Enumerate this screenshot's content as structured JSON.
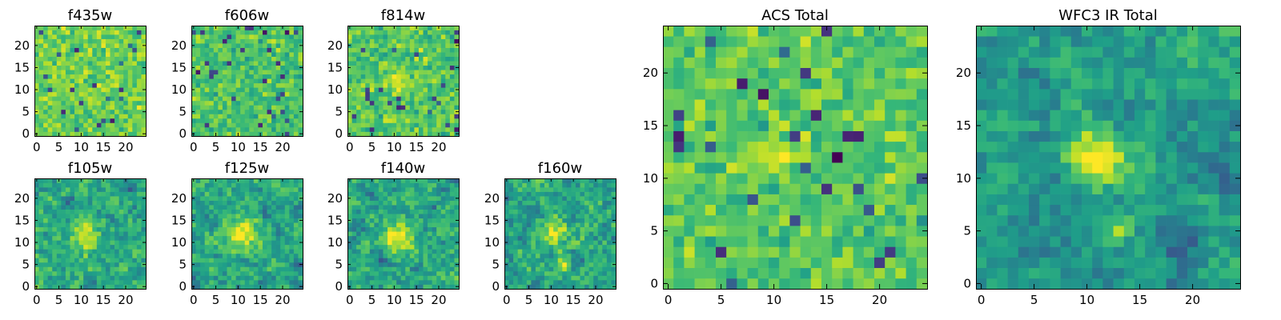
{
  "chart_data": {
    "type": "heatmap",
    "colormap": "viridis",
    "grid": false,
    "panels": [
      {
        "id": "f435w",
        "title": "f435w",
        "size": "small",
        "cols": 25,
        "rows": 25,
        "xticks": [
          0,
          5,
          10,
          15,
          20
        ],
        "yticks": [
          0,
          5,
          10,
          15,
          20
        ],
        "xlim": [
          -0.5,
          24.5
        ],
        "ylim": [
          -0.5,
          24.5
        ],
        "seed": 11,
        "level": 0.78,
        "spread": 0.22,
        "smooth": 0,
        "peaks": []
      },
      {
        "id": "f606w",
        "title": "f606w",
        "size": "small",
        "cols": 25,
        "rows": 25,
        "xticks": [
          0,
          5,
          10,
          15,
          20
        ],
        "yticks": [
          0,
          5,
          10,
          15,
          20
        ],
        "xlim": [
          -0.5,
          24.5
        ],
        "ylim": [
          -0.5,
          24.5
        ],
        "seed": 23,
        "level": 0.72,
        "spread": 0.22,
        "smooth": 0,
        "peaks": []
      },
      {
        "id": "f814w",
        "title": "f814w",
        "size": "small",
        "cols": 25,
        "rows": 25,
        "xticks": [
          0,
          5,
          10,
          15,
          20
        ],
        "yticks": [
          0,
          5,
          10,
          15,
          20
        ],
        "xlim": [
          -0.5,
          24.5
        ],
        "ylim": [
          -0.5,
          24.5
        ],
        "seed": 37,
        "level": 0.74,
        "spread": 0.24,
        "smooth": 0,
        "peaks": [
          {
            "x": 11,
            "y": 12,
            "amp": 0.2,
            "r": 1.5
          }
        ]
      },
      {
        "id": "f105w",
        "title": "f105w",
        "size": "small",
        "cols": 25,
        "rows": 25,
        "xticks": [
          0,
          5,
          10,
          15,
          20
        ],
        "yticks": [
          0,
          5,
          10,
          15,
          20
        ],
        "xlim": [
          -0.5,
          24.5
        ],
        "ylim": [
          -0.5,
          24.5
        ],
        "seed": 41,
        "level": 0.62,
        "spread": 0.3,
        "smooth": 1,
        "peaks": [
          {
            "x": 11,
            "y": 12,
            "amp": 0.35,
            "r": 2.2
          }
        ]
      },
      {
        "id": "f125w",
        "title": "f125w",
        "size": "small",
        "cols": 25,
        "rows": 25,
        "xticks": [
          0,
          5,
          10,
          15,
          20
        ],
        "yticks": [
          0,
          5,
          10,
          15,
          20
        ],
        "xlim": [
          -0.5,
          24.5
        ],
        "ylim": [
          -0.5,
          24.5
        ],
        "seed": 53,
        "level": 0.62,
        "spread": 0.3,
        "smooth": 1,
        "peaks": [
          {
            "x": 11,
            "y": 12,
            "amp": 0.4,
            "r": 2.2
          }
        ]
      },
      {
        "id": "f140w",
        "title": "f140w",
        "size": "small",
        "cols": 25,
        "rows": 25,
        "xticks": [
          0,
          5,
          10,
          15,
          20
        ],
        "yticks": [
          0,
          5,
          10,
          15,
          20
        ],
        "xlim": [
          -0.5,
          24.5
        ],
        "ylim": [
          -0.5,
          24.5
        ],
        "seed": 67,
        "level": 0.6,
        "spread": 0.3,
        "smooth": 1,
        "peaks": [
          {
            "x": 11,
            "y": 11,
            "amp": 0.45,
            "r": 2.2
          }
        ]
      },
      {
        "id": "f160w",
        "title": "f160w",
        "size": "small",
        "cols": 25,
        "rows": 25,
        "xticks": [
          0,
          5,
          10,
          15,
          20
        ],
        "yticks": [
          0,
          5,
          10,
          15,
          20
        ],
        "xlim": [
          -0.5,
          24.5
        ],
        "ylim": [
          -0.5,
          24.5
        ],
        "seed": 79,
        "level": 0.6,
        "spread": 0.3,
        "smooth": 1,
        "peaks": [
          {
            "x": 11,
            "y": 12,
            "amp": 0.4,
            "r": 2.0
          },
          {
            "x": 13,
            "y": 5,
            "amp": 0.3,
            "r": 1.0
          }
        ]
      },
      {
        "id": "acs-total",
        "title": "ACS Total",
        "size": "large",
        "cols": 25,
        "rows": 25,
        "xticks": [
          0,
          5,
          10,
          15,
          20
        ],
        "yticks": [
          0,
          5,
          10,
          15,
          20
        ],
        "xlim": [
          -0.5,
          24.5
        ],
        "ylim": [
          -0.5,
          24.5
        ],
        "seed": 97,
        "level": 0.74,
        "spread": 0.22,
        "smooth": 0,
        "peaks": [
          {
            "x": 10,
            "y": 12,
            "amp": 0.22,
            "r": 1.5
          }
        ]
      },
      {
        "id": "wfc3-ir-total",
        "title": "WFC3 IR Total",
        "size": "large",
        "cols": 25,
        "rows": 25,
        "xticks": [
          0,
          5,
          10,
          15,
          20
        ],
        "yticks": [
          0,
          5,
          10,
          15,
          20
        ],
        "xlim": [
          -0.5,
          24.5
        ],
        "ylim": [
          -0.5,
          24.5
        ],
        "seed": 113,
        "level": 0.55,
        "spread": 0.26,
        "smooth": 2,
        "peaks": [
          {
            "x": 11,
            "y": 12,
            "amp": 0.45,
            "r": 2.0
          },
          {
            "x": 13,
            "y": 5,
            "amp": 0.3,
            "r": 1.0
          }
        ]
      }
    ]
  }
}
